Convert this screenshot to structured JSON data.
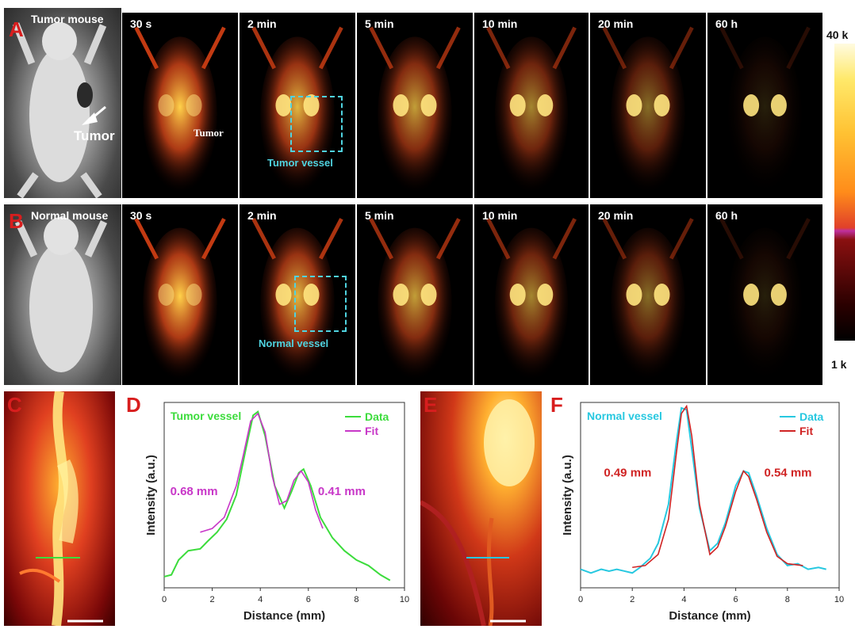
{
  "row_a": {
    "label": "A",
    "title": "Tumor mouse",
    "photo_tumor_label": "Tumor",
    "times": [
      "30 s",
      "2 min",
      "5 min",
      "10 min",
      "20 min",
      "60 h"
    ],
    "tumor_inline_label": "Tumor",
    "vessel_label": "Tumor vessel"
  },
  "row_b": {
    "label": "B",
    "title": "Normal mouse",
    "times": [
      "30 s",
      "2 min",
      "5 min",
      "10 min",
      "20 min",
      "60 h"
    ],
    "vessel_label": "Normal vessel"
  },
  "colorbar": {
    "max_label": "40 k",
    "min_label": "1 k"
  },
  "panel_c": {
    "label": "C"
  },
  "panel_e": {
    "label": "E"
  },
  "colors": {
    "data_d": "#3cdc3c",
    "fit_d": "#c837c8",
    "data_f": "#27c8e0",
    "fit_f": "#d02424",
    "annot_d": "#c837c8",
    "annot_f": "#d02424"
  },
  "chart_data": [
    {
      "panel": "D",
      "type": "line",
      "title": "Tumor vessel",
      "xlabel": "Distance (mm)",
      "ylabel": "Intensity (a.u.)",
      "xlim": [
        0,
        10
      ],
      "xticks": [
        0,
        2,
        4,
        6,
        8,
        10
      ],
      "legend": "top-right",
      "series": [
        {
          "name": "Data",
          "x": [
            0,
            0.3,
            0.6,
            1.0,
            1.5,
            1.8,
            2.2,
            2.6,
            3.0,
            3.4,
            3.7,
            3.9,
            4.2,
            4.6,
            5.0,
            5.3,
            5.6,
            5.8,
            6.1,
            6.5,
            7.0,
            7.5,
            8.0,
            8.5,
            9.0,
            9.4
          ],
          "y": [
            0.06,
            0.07,
            0.15,
            0.2,
            0.21,
            0.25,
            0.3,
            0.37,
            0.5,
            0.75,
            0.93,
            0.95,
            0.82,
            0.55,
            0.43,
            0.52,
            0.62,
            0.64,
            0.55,
            0.38,
            0.27,
            0.2,
            0.15,
            0.12,
            0.07,
            0.04
          ]
        },
        {
          "name": "Fit",
          "x": [
            1.5,
            2.0,
            2.5,
            3.0,
            3.3,
            3.6,
            3.9,
            4.2,
            4.5,
            4.8,
            5.1,
            5.4,
            5.7,
            6.0,
            6.3,
            6.6
          ],
          "y": [
            0.3,
            0.32,
            0.38,
            0.55,
            0.72,
            0.9,
            0.94,
            0.84,
            0.6,
            0.45,
            0.47,
            0.58,
            0.63,
            0.57,
            0.42,
            0.32
          ]
        }
      ],
      "annotations": [
        "0.68 mm",
        "0.41 mm"
      ]
    },
    {
      "panel": "F",
      "type": "line",
      "title": "Normal vessel",
      "xlabel": "Distance (mm)",
      "ylabel": "Intensity (a.u.)",
      "xlim": [
        0,
        10
      ],
      "xticks": [
        0,
        2,
        4,
        6,
        8,
        10
      ],
      "legend": "top-right",
      "series": [
        {
          "name": "Data",
          "x": [
            0,
            0.4,
            0.8,
            1.1,
            1.4,
            1.7,
            2.0,
            2.3,
            2.7,
            3.0,
            3.4,
            3.7,
            3.9,
            4.1,
            4.3,
            4.6,
            5.0,
            5.3,
            5.6,
            6.0,
            6.3,
            6.5,
            6.8,
            7.2,
            7.6,
            8.0,
            8.4,
            8.8,
            9.2,
            9.5
          ],
          "y": [
            0.1,
            0.08,
            0.1,
            0.09,
            0.1,
            0.09,
            0.08,
            0.11,
            0.16,
            0.24,
            0.45,
            0.78,
            0.97,
            0.96,
            0.75,
            0.43,
            0.2,
            0.24,
            0.35,
            0.55,
            0.63,
            0.62,
            0.5,
            0.32,
            0.18,
            0.12,
            0.13,
            0.1,
            0.11,
            0.1
          ]
        },
        {
          "name": "Fit",
          "x": [
            2.0,
            2.5,
            3.0,
            3.4,
            3.7,
            3.9,
            4.1,
            4.3,
            4.6,
            5.0,
            5.3,
            5.6,
            6.0,
            6.3,
            6.5,
            6.8,
            7.2,
            7.6,
            8.0,
            8.6
          ],
          "y": [
            0.11,
            0.12,
            0.18,
            0.37,
            0.72,
            0.94,
            0.98,
            0.82,
            0.45,
            0.18,
            0.22,
            0.33,
            0.52,
            0.63,
            0.6,
            0.48,
            0.3,
            0.17,
            0.13,
            0.12
          ]
        }
      ],
      "annotations": [
        "0.49 mm",
        "0.54 mm"
      ]
    }
  ]
}
